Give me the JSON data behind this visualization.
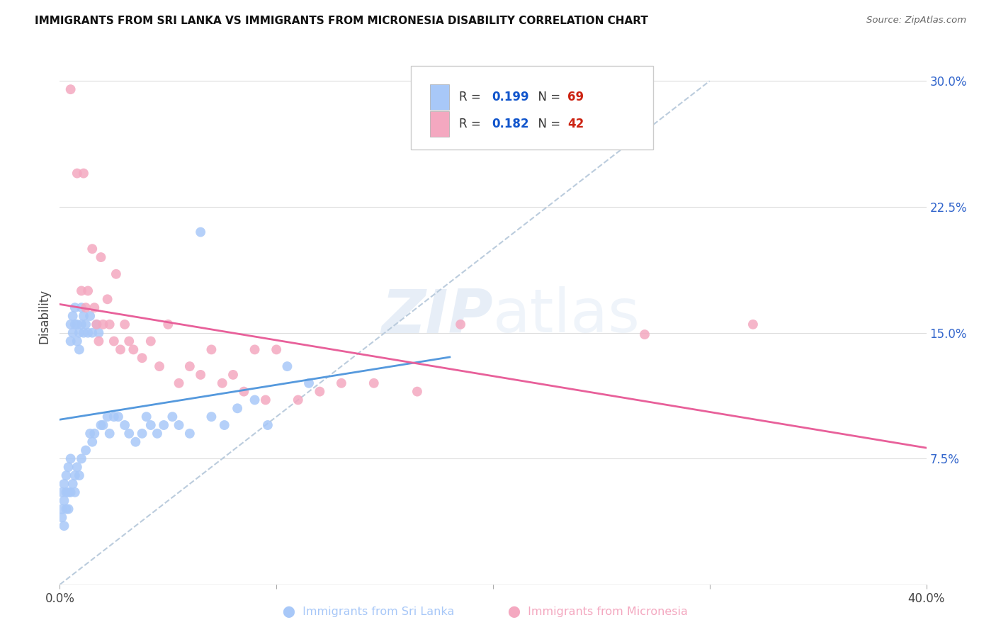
{
  "title": "IMMIGRANTS FROM SRI LANKA VS IMMIGRANTS FROM MICRONESIA DISABILITY CORRELATION CHART",
  "source": "Source: ZipAtlas.com",
  "ylabel": "Disability",
  "yticks": [
    0.0,
    0.075,
    0.15,
    0.225,
    0.3
  ],
  "ytick_labels": [
    "",
    "7.5%",
    "15.0%",
    "22.5%",
    "30.0%"
  ],
  "xlim": [
    0.0,
    0.4
  ],
  "ylim": [
    0.0,
    0.32
  ],
  "watermark": "ZIPatlas",
  "sri_lanka_R": 0.199,
  "sri_lanka_N": 69,
  "micronesia_R": 0.182,
  "micronesia_N": 42,
  "sri_lanka_color": "#a8c8f8",
  "micronesia_color": "#f4a8c0",
  "sri_lanka_line_color": "#5599dd",
  "micronesia_line_color": "#e8609a",
  "diagonal_line_color": "#bbccdd",
  "background_color": "#ffffff",
  "legend_R_color": "#1155cc",
  "legend_N_color": "#cc2211",
  "sri_lanka_x": [
    0.001,
    0.001,
    0.001,
    0.002,
    0.002,
    0.002,
    0.003,
    0.003,
    0.003,
    0.004,
    0.004,
    0.004,
    0.005,
    0.005,
    0.005,
    0.005,
    0.006,
    0.006,
    0.006,
    0.007,
    0.007,
    0.007,
    0.007,
    0.008,
    0.008,
    0.008,
    0.009,
    0.009,
    0.009,
    0.01,
    0.01,
    0.01,
    0.011,
    0.011,
    0.012,
    0.012,
    0.013,
    0.014,
    0.014,
    0.015,
    0.015,
    0.016,
    0.017,
    0.018,
    0.019,
    0.02,
    0.022,
    0.023,
    0.025,
    0.027,
    0.03,
    0.032,
    0.035,
    0.038,
    0.04,
    0.042,
    0.045,
    0.048,
    0.052,
    0.055,
    0.06,
    0.065,
    0.07,
    0.076,
    0.082,
    0.09,
    0.096,
    0.105,
    0.115
  ],
  "sri_lanka_y": [
    0.055,
    0.045,
    0.04,
    0.06,
    0.05,
    0.035,
    0.065,
    0.055,
    0.045,
    0.07,
    0.055,
    0.045,
    0.155,
    0.145,
    0.075,
    0.055,
    0.16,
    0.15,
    0.06,
    0.165,
    0.155,
    0.065,
    0.055,
    0.155,
    0.145,
    0.07,
    0.15,
    0.14,
    0.065,
    0.165,
    0.155,
    0.075,
    0.16,
    0.15,
    0.155,
    0.08,
    0.15,
    0.16,
    0.09,
    0.15,
    0.085,
    0.09,
    0.155,
    0.15,
    0.095,
    0.095,
    0.1,
    0.09,
    0.1,
    0.1,
    0.095,
    0.09,
    0.085,
    0.09,
    0.1,
    0.095,
    0.09,
    0.095,
    0.1,
    0.095,
    0.09,
    0.21,
    0.1,
    0.095,
    0.105,
    0.11,
    0.095,
    0.13,
    0.12
  ],
  "micronesia_x": [
    0.005,
    0.008,
    0.01,
    0.011,
    0.012,
    0.013,
    0.015,
    0.016,
    0.017,
    0.018,
    0.019,
    0.02,
    0.022,
    0.023,
    0.025,
    0.026,
    0.028,
    0.03,
    0.032,
    0.034,
    0.038,
    0.042,
    0.046,
    0.05,
    0.055,
    0.06,
    0.065,
    0.07,
    0.075,
    0.08,
    0.085,
    0.09,
    0.095,
    0.1,
    0.11,
    0.12,
    0.13,
    0.145,
    0.165,
    0.185,
    0.27,
    0.32
  ],
  "micronesia_y": [
    0.295,
    0.245,
    0.175,
    0.245,
    0.165,
    0.175,
    0.2,
    0.165,
    0.155,
    0.145,
    0.195,
    0.155,
    0.17,
    0.155,
    0.145,
    0.185,
    0.14,
    0.155,
    0.145,
    0.14,
    0.135,
    0.145,
    0.13,
    0.155,
    0.12,
    0.13,
    0.125,
    0.14,
    0.12,
    0.125,
    0.115,
    0.14,
    0.11,
    0.14,
    0.11,
    0.115,
    0.12,
    0.12,
    0.115,
    0.155,
    0.149,
    0.155
  ]
}
